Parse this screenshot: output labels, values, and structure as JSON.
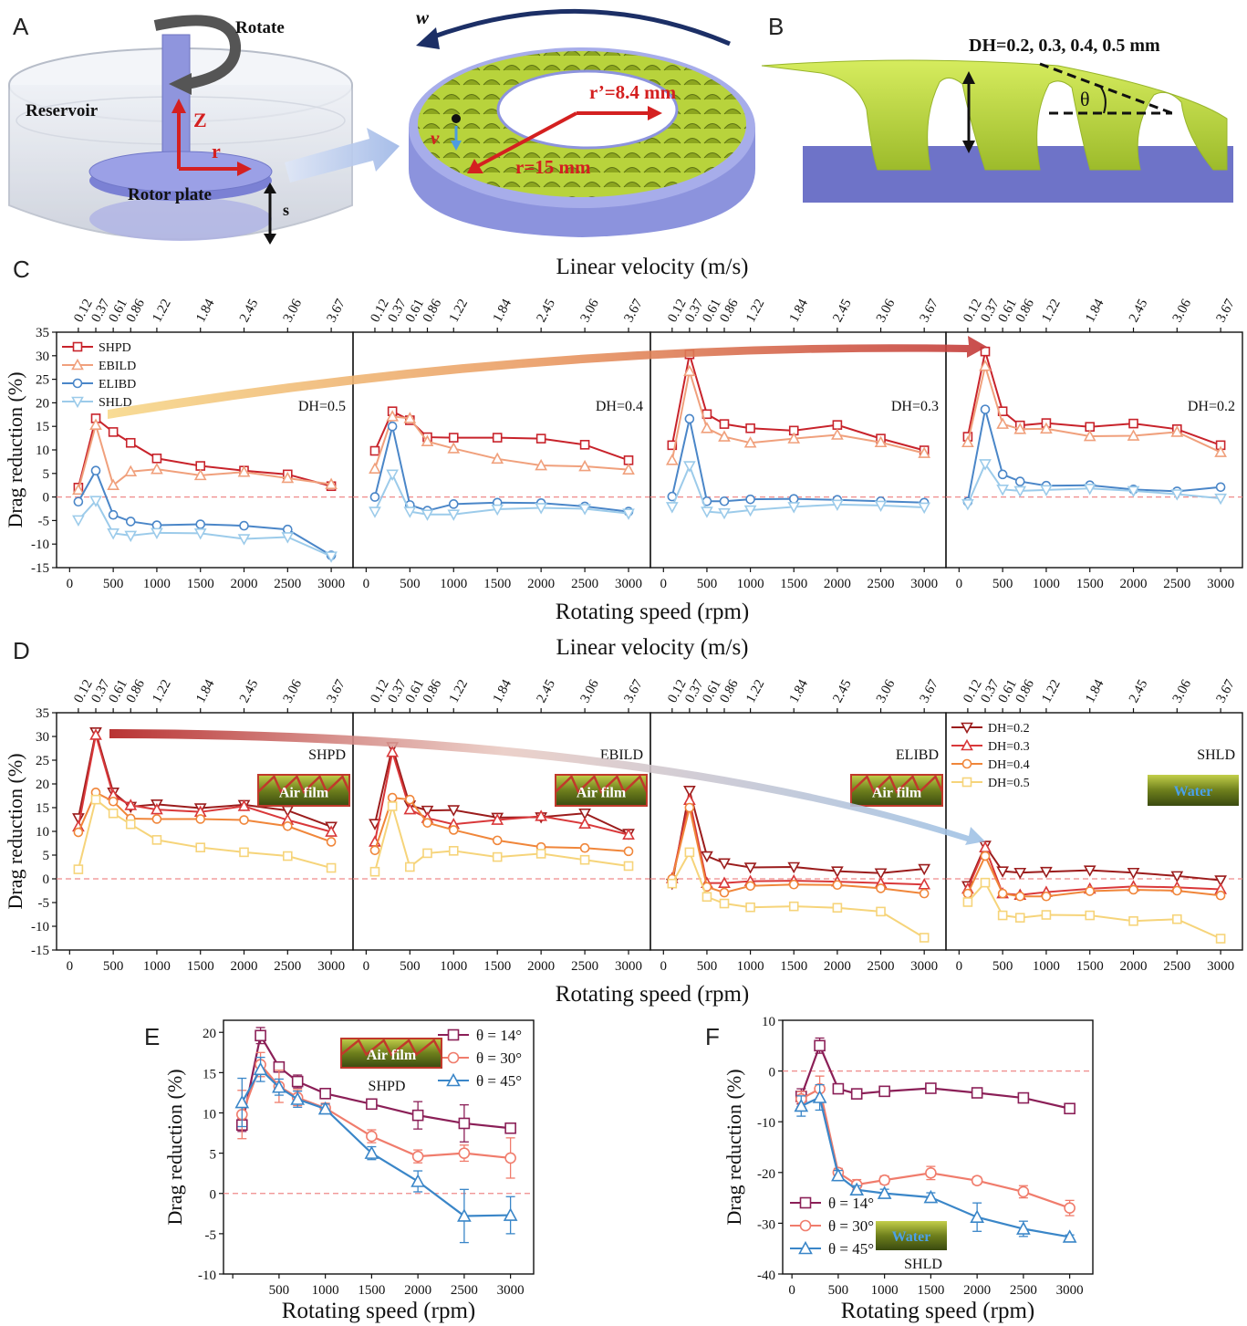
{
  "panel_letters": {
    "a": "A",
    "b": "B",
    "c": "C",
    "d": "D",
    "e": "E",
    "f": "F"
  },
  "schematic": {
    "rotate_label": "Rotate",
    "reservoir_label": "Reservoir",
    "z_label": "Z",
    "r_label": "r",
    "rotor_label": "Rotor plate",
    "s_label": "s",
    "w_label": "w",
    "v_label": "v",
    "r_outer_label": "r=15 mm",
    "r_inner_label": "r’=8.4 mm",
    "dh_label": "DH=0.2, 0.3, 0.4, 0.5 mm",
    "theta_label": "θ",
    "colors": {
      "plate": "#8c93dd",
      "surface": "#b9d63f",
      "arrow_red": "#d42020",
      "arrow_navy": "#1c2f66"
    }
  },
  "icons": {
    "air_film": "Air film",
    "water": "Water"
  },
  "chart_data": [
    {
      "id": "C",
      "type": "line",
      "xlabel": "Rotating speed (rpm)",
      "x2label": "Linear velocity (m/s)",
      "ylabel": "Drag reduction (%)",
      "ylim": [
        -15,
        35
      ],
      "yticks": [
        -15,
        -10,
        -5,
        0,
        5,
        10,
        15,
        20,
        25,
        30,
        35
      ],
      "xlim": [
        -150,
        3250
      ],
      "xticks": [
        0,
        500,
        1000,
        1500,
        2000,
        2500,
        3000
      ],
      "x": [
        100,
        300,
        500,
        700,
        1000,
        1500,
        2000,
        2500,
        3000
      ],
      "top_ticks": [
        "0.12",
        "0.37",
        "0.61",
        "0.86",
        "1.22",
        "1.84",
        "2.45",
        "3.06",
        "3.67"
      ],
      "legend": {
        "subplot": 0,
        "position": "top-left"
      },
      "subplots": [
        {
          "label": "DH=0.5",
          "series": [
            {
              "name": "SHPD",
              "values": [
                2,
                16.7,
                13.8,
                11.5,
                8.2,
                6.6,
                5.6,
                4.8,
                2.3
              ]
            },
            {
              "name": "EBILD",
              "values": [
                1.5,
                15.3,
                2.5,
                5.4,
                5.9,
                4.6,
                5.3,
                4.0,
                2.7
              ]
            },
            {
              "name": "ELIBD",
              "values": [
                -1,
                5.6,
                -3.8,
                -5.2,
                -6.0,
                -5.8,
                -6.1,
                -6.9,
                -12.4
              ]
            },
            {
              "name": "SHLD",
              "values": [
                -4.9,
                -0.8,
                -7.7,
                -8.2,
                -7.6,
                -7.7,
                -8.9,
                -8.5,
                -12.6
              ]
            }
          ]
        },
        {
          "label": "DH=0.4",
          "series": [
            {
              "name": "SHPD",
              "values": [
                9.8,
                18.2,
                16.3,
                12.7,
                12.6,
                12.6,
                12.4,
                11.1,
                7.8
              ]
            },
            {
              "name": "EBILD",
              "values": [
                6,
                17.1,
                16.7,
                11.8,
                10.3,
                8.1,
                6.7,
                6.5,
                5.8
              ]
            },
            {
              "name": "ELIBD",
              "values": [
                0,
                15.0,
                -1.7,
                -2.9,
                -1.5,
                -1.2,
                -1.3,
                -2.0,
                -3.1
              ]
            },
            {
              "name": "SHLD",
              "values": [
                -3.1,
                4.8,
                -3.1,
                -3.7,
                -3.7,
                -2.6,
                -2.3,
                -2.5,
                -3.5
              ]
            }
          ]
        },
        {
          "label": "DH=0.3",
          "series": [
            {
              "name": "SHPD",
              "values": [
                11,
                30.3,
                17.6,
                15.5,
                14.6,
                14.1,
                15.3,
                12.4,
                9.9
              ]
            },
            {
              "name": "EBILD",
              "values": [
                7.8,
                26.7,
                14.6,
                12.8,
                11.5,
                12.4,
                13.2,
                11.6,
                9.3
              ]
            },
            {
              "name": "ELIBD",
              "values": [
                0.1,
                16.6,
                -0.9,
                -0.9,
                -0.5,
                -0.4,
                -0.6,
                -0.9,
                -1.2
              ]
            },
            {
              "name": "SHLD",
              "values": [
                -2.1,
                6.6,
                -3.1,
                -3.4,
                -2.8,
                -2.1,
                -1.6,
                -1.8,
                -2.2
              ]
            }
          ]
        },
        {
          "label": "DH=0.2",
          "series": [
            {
              "name": "SHPD",
              "values": [
                12.8,
                30.9,
                18.2,
                15.2,
                15.7,
                14.9,
                15.6,
                14.4,
                11
              ]
            },
            {
              "name": "EBILD",
              "values": [
                11.6,
                27.8,
                15.5,
                14.4,
                14.5,
                12.9,
                13.0,
                13.8,
                9.5
              ]
            },
            {
              "name": "ELIBD",
              "values": [
                -1.0,
                18.6,
                4.8,
                3.3,
                2.4,
                2.5,
                1.6,
                1.2,
                2.1
              ]
            },
            {
              "name": "SHLD",
              "values": [
                -1.5,
                7.0,
                1.6,
                1.3,
                1.5,
                1.8,
                1.3,
                0.6,
                -0.3
              ]
            }
          ]
        }
      ]
    },
    {
      "id": "D",
      "type": "line",
      "xlabel": "Rotating speed (rpm)",
      "x2label": "Linear velocity (m/s)",
      "ylabel": "Drag reduction (%)",
      "ylim": [
        -15,
        35
      ],
      "yticks": [
        -15,
        -10,
        -5,
        0,
        5,
        10,
        15,
        20,
        25,
        30,
        35
      ],
      "xlim": [
        -150,
        3250
      ],
      "xticks": [
        0,
        500,
        1000,
        1500,
        2000,
        2500,
        3000
      ],
      "x": [
        100,
        300,
        500,
        700,
        1000,
        1500,
        2000,
        2500,
        3000
      ],
      "top_ticks": [
        "0.12",
        "0.37",
        "0.61",
        "0.86",
        "1.22",
        "1.84",
        "2.45",
        "3.06",
        "3.67"
      ],
      "legend": {
        "subplot": 3,
        "position": "top-left"
      },
      "subplots": [
        {
          "label": "SHPD",
          "icon": "air",
          "series": [
            {
              "name": "DH=0.2",
              "values": [
                12.8,
                30.9,
                18.2,
                15.2,
                15.7,
                14.9,
                15.6,
                14.4,
                11
              ]
            },
            {
              "name": "DH=0.3",
              "values": [
                11,
                30.3,
                17.6,
                15.5,
                14.6,
                14.1,
                15.3,
                12.4,
                9.9
              ]
            },
            {
              "name": "DH=0.4",
              "values": [
                9.8,
                18.2,
                16.3,
                12.7,
                12.6,
                12.6,
                12.4,
                11.1,
                7.8
              ]
            },
            {
              "name": "DH=0.5",
              "values": [
                2,
                16.7,
                13.8,
                11.5,
                8.2,
                6.6,
                5.6,
                4.8,
                2.3
              ]
            }
          ]
        },
        {
          "label": "EBILD",
          "icon": "air",
          "series": [
            {
              "name": "DH=0.2",
              "values": [
                11.6,
                27.8,
                15.5,
                14.4,
                14.5,
                12.9,
                13.0,
                13.8,
                9.5
              ]
            },
            {
              "name": "DH=0.3",
              "values": [
                7.8,
                26.7,
                14.6,
                12.8,
                11.5,
                12.4,
                13.2,
                11.6,
                9.3
              ]
            },
            {
              "name": "DH=0.4",
              "values": [
                6,
                17.1,
                16.7,
                11.8,
                10.3,
                8.1,
                6.7,
                6.5,
                5.8
              ]
            },
            {
              "name": "DH=0.5",
              "values": [
                1.5,
                15.3,
                2.5,
                5.4,
                5.9,
                4.6,
                5.3,
                4.0,
                2.7
              ]
            }
          ]
        },
        {
          "label": "ELIBD",
          "icon": "air",
          "series": [
            {
              "name": "DH=0.2",
              "values": [
                -1.0,
                18.6,
                4.8,
                3.3,
                2.4,
                2.5,
                1.6,
                1.2,
                2.1
              ]
            },
            {
              "name": "DH=0.3",
              "values": [
                0.1,
                16.6,
                -0.9,
                -0.9,
                -0.5,
                -0.4,
                -0.6,
                -0.9,
                -1.2
              ]
            },
            {
              "name": "DH=0.4",
              "values": [
                0,
                15.0,
                -1.7,
                -2.9,
                -1.5,
                -1.2,
                -1.3,
                -2.0,
                -3.1
              ]
            },
            {
              "name": "DH=0.5",
              "values": [
                -1,
                5.6,
                -3.8,
                -5.2,
                -6.0,
                -5.8,
                -6.1,
                -6.9,
                -12.4
              ]
            }
          ]
        },
        {
          "label": "SHLD",
          "icon": "water",
          "series": [
            {
              "name": "DH=0.2",
              "values": [
                -1.5,
                7.0,
                1.6,
                1.3,
                1.5,
                1.8,
                1.3,
                0.6,
                -0.3
              ]
            },
            {
              "name": "DH=0.3",
              "values": [
                -2.1,
                6.6,
                -3.1,
                -3.4,
                -2.8,
                -2.1,
                -1.6,
                -1.8,
                -2.2
              ]
            },
            {
              "name": "DH=0.4",
              "values": [
                -3.1,
                4.8,
                -3.1,
                -3.7,
                -3.7,
                -2.6,
                -2.3,
                -2.5,
                -3.5
              ]
            },
            {
              "name": "DH=0.5",
              "values": [
                -4.9,
                -0.8,
                -7.7,
                -8.2,
                -7.6,
                -7.7,
                -8.9,
                -8.5,
                -12.6
              ]
            }
          ]
        }
      ]
    },
    {
      "id": "E",
      "type": "line",
      "xlabel": "Rotating speed (rpm)",
      "ylabel": "Drag reduction (%)",
      "label": "SHPD",
      "icon": "air",
      "ylim": [
        -10,
        21.5
      ],
      "yticks": [
        -10,
        -5,
        0,
        5,
        10,
        15,
        20
      ],
      "xlim": [
        -100,
        3250
      ],
      "xticks": [
        0,
        500,
        1000,
        1500,
        2000,
        2500,
        3000
      ],
      "xtick_labels": [
        "",
        "500",
        "1000",
        "1500",
        "2000",
        "2500",
        "3000"
      ],
      "x": [
        100,
        300,
        500,
        700,
        1000,
        1500,
        2000,
        2500,
        3000
      ],
      "legend": "top-right",
      "series": [
        {
          "name": "θ = 14°",
          "values": [
            8.5,
            19.6,
            15.7,
            13.9,
            12.4,
            11.1,
            9.7,
            8.7,
            8.1
          ],
          "err": [
            0.8,
            1.0,
            0.6,
            0.8,
            0.4,
            0.4,
            1.7,
            2.3,
            0.4
          ]
        },
        {
          "name": "θ = 30°",
          "values": [
            9.8,
            16.0,
            13.3,
            11.9,
            10.6,
            7.1,
            4.6,
            5.0,
            4.4
          ],
          "err": [
            3.0,
            1.5,
            2.0,
            1.0,
            0.6,
            0.8,
            0.8,
            1.0,
            2.5
          ]
        },
        {
          "name": "θ = 45°",
          "values": [
            11.3,
            15.4,
            13.2,
            11.7,
            10.5,
            5.0,
            1.5,
            -2.8,
            -2.7
          ],
          "err": [
            3.0,
            1.5,
            1.0,
            1.0,
            0.6,
            0.8,
            1.3,
            3.3,
            2.3
          ]
        }
      ]
    },
    {
      "id": "F",
      "type": "line",
      "xlabel": "Rotating speed (rpm)",
      "ylabel": "Drag reduction (%)",
      "label": "SHLD",
      "icon": "water",
      "ylim": [
        -40,
        10
      ],
      "yticks": [
        -40,
        -30,
        -20,
        -10,
        0,
        10
      ],
      "xlim": [
        -100,
        3250
      ],
      "xticks": [
        0,
        500,
        1000,
        1500,
        2000,
        2500,
        3000
      ],
      "xtick_labels": [
        "0",
        "500",
        "1000",
        "1500",
        "2000",
        "2500",
        "3000"
      ],
      "x": [
        100,
        300,
        500,
        700,
        1000,
        1500,
        2000,
        2500,
        3000
      ],
      "legend": "bottom-left",
      "series": [
        {
          "name": "θ = 14°",
          "values": [
            -5.0,
            5.0,
            -3.5,
            -4.5,
            -4.0,
            -3.4,
            -4.3,
            -5.3,
            -7.4
          ],
          "err": [
            1.5,
            1.5,
            0.6,
            0.6,
            0.6,
            0.6,
            0.8,
            0.6,
            0.8
          ]
        },
        {
          "name": "θ = 30°",
          "values": [
            -5.5,
            -3.5,
            -20.0,
            -22.4,
            -21.5,
            -20.1,
            -21.6,
            -23.8,
            -27.0
          ],
          "err": [
            1.5,
            2.5,
            0.8,
            1.0,
            0.8,
            1.3,
            0.7,
            1.2,
            1.5
          ]
        },
        {
          "name": "θ = 45°",
          "values": [
            -6.9,
            -5.2,
            -20.6,
            -23.4,
            -24.1,
            -24.9,
            -28.8,
            -31.1,
            -32.7
          ],
          "err": [
            2.0,
            2.5,
            1.0,
            0.8,
            0.8,
            0.9,
            2.8,
            1.5,
            0.4
          ]
        }
      ]
    }
  ]
}
